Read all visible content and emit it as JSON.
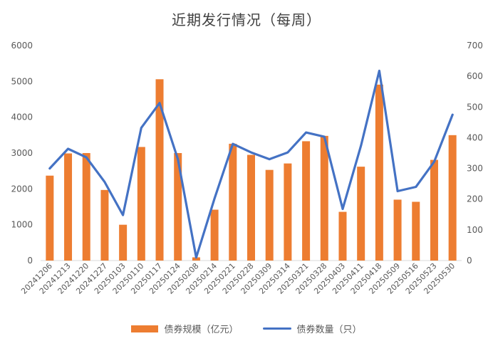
{
  "chart_data": {
    "type": "bar",
    "title": "近期发行情况（每周）",
    "categories": [
      "20241206",
      "20241213",
      "20241220",
      "20241227",
      "20250103",
      "20250110",
      "20250117",
      "20250124",
      "20250208",
      "20250214",
      "20250221",
      "20250228",
      "20250309",
      "20250314",
      "20250321",
      "20250328",
      "20250403",
      "20250411",
      "20250418",
      "20250509",
      "20250516",
      "20250523",
      "20250530"
    ],
    "series": [
      {
        "name": "债券规模（亿元）",
        "type": "bar",
        "axis": "left",
        "color": "#ED7D31",
        "values": [
          2370,
          2990,
          3000,
          1970,
          1000,
          3170,
          5060,
          3000,
          90,
          1420,
          3260,
          2950,
          2530,
          2710,
          3330,
          3480,
          1360,
          2620,
          4910,
          1700,
          1640,
          2810,
          3500
        ]
      },
      {
        "name": "债券数量（只）",
        "type": "line",
        "axis": "right",
        "color": "#4472C4",
        "values": [
          300,
          364,
          336,
          256,
          148,
          432,
          513,
          330,
          10,
          202,
          380,
          352,
          330,
          352,
          417,
          403,
          168,
          374,
          618,
          226,
          240,
          322,
          475
        ]
      }
    ],
    "y_left": {
      "min": 0,
      "max": 6000,
      "ticks": [
        "0",
        "1000",
        "2000",
        "3000",
        "4000",
        "5000",
        "6000"
      ]
    },
    "y_right": {
      "min": 0,
      "max": 700,
      "ticks": [
        "0",
        "100",
        "200",
        "300",
        "400",
        "500",
        "600",
        "700"
      ]
    },
    "grid": false,
    "legend": "bottom"
  }
}
